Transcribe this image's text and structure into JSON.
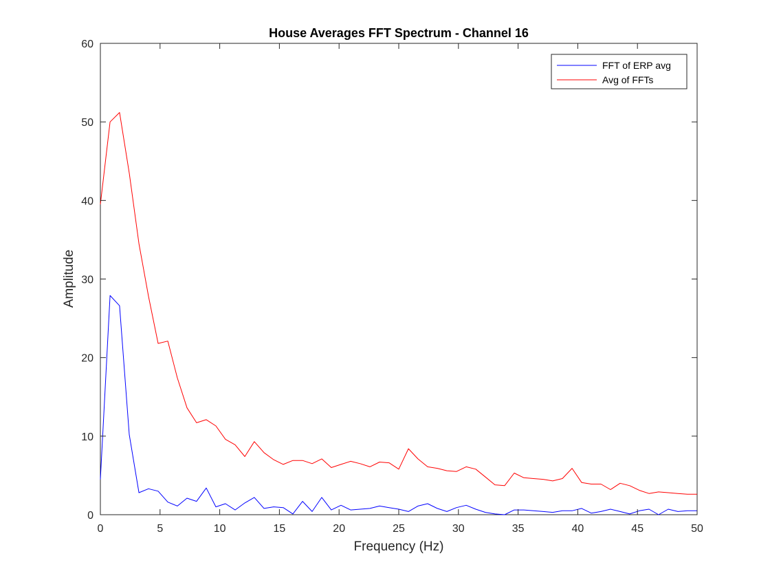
{
  "colors": {
    "background": "#ffffff",
    "axes": "#262626",
    "blue_series": "#0000ff",
    "red_series": "#ff0000"
  },
  "chart_data": {
    "type": "line",
    "title": "House Averages FFT Spectrum - Channel 16",
    "xlabel": "Frequency (Hz)",
    "ylabel": "Amplitude",
    "xlim": [
      0,
      50
    ],
    "ylim": [
      0,
      60
    ],
    "xticks": [
      "0",
      "5",
      "10",
      "15",
      "20",
      "25",
      "30",
      "35",
      "40",
      "45",
      "50"
    ],
    "yticks": [
      "0",
      "10",
      "20",
      "30",
      "40",
      "50",
      "60"
    ],
    "grid": false,
    "legend": "top-right",
    "x": [
      0,
      0.81,
      1.61,
      2.42,
      3.23,
      4.03,
      4.84,
      5.65,
      6.45,
      7.26,
      8.06,
      8.87,
      9.68,
      10.48,
      11.29,
      12.1,
      12.9,
      13.71,
      14.52,
      15.32,
      16.13,
      16.94,
      17.74,
      18.55,
      19.35,
      20.16,
      20.97,
      21.77,
      22.58,
      23.39,
      24.19,
      25.0,
      25.81,
      26.61,
      27.42,
      28.23,
      29.03,
      29.84,
      30.65,
      31.45,
      32.26,
      33.06,
      33.87,
      34.68,
      35.48,
      36.29,
      37.1,
      37.9,
      38.71,
      39.52,
      40.32,
      41.13,
      41.94,
      42.74,
      43.55,
      44.35,
      45.16,
      45.97,
      46.77,
      47.58,
      48.39,
      49.19,
      50.0
    ],
    "series": [
      {
        "name": "FFT of ERP avg",
        "color": "#0000ff",
        "values": [
          4.5,
          27.9,
          26.6,
          10.2,
          2.8,
          3.3,
          3.0,
          1.6,
          1.1,
          2.1,
          1.7,
          3.4,
          1.0,
          1.4,
          0.6,
          1.5,
          2.2,
          0.8,
          1.0,
          0.9,
          0.1,
          1.7,
          0.4,
          2.2,
          0.6,
          1.2,
          0.6,
          0.7,
          0.8,
          1.1,
          0.9,
          0.7,
          0.4,
          1.1,
          1.4,
          0.8,
          0.4,
          0.9,
          1.2,
          0.7,
          0.3,
          0.1,
          0.0,
          0.6,
          0.6,
          0.5,
          0.4,
          0.3,
          0.5,
          0.5,
          0.8,
          0.2,
          0.4,
          0.7,
          0.4,
          0.1,
          0.5,
          0.7,
          0.0,
          0.7,
          0.4,
          0.5,
          0.5
        ]
      },
      {
        "name": "Avg of FFTs",
        "color": "#ff0000",
        "values": [
          39.5,
          50.0,
          51.2,
          43.5,
          34.5,
          27.8,
          21.8,
          22.1,
          17.4,
          13.6,
          11.7,
          12.1,
          11.3,
          9.6,
          8.9,
          7.4,
          9.3,
          7.9,
          7.0,
          6.4,
          6.9,
          6.9,
          6.5,
          7.1,
          6.0,
          6.4,
          6.8,
          6.5,
          6.1,
          6.7,
          6.6,
          5.8,
          8.4,
          7.1,
          6.1,
          5.9,
          5.6,
          5.5,
          6.1,
          5.8,
          4.8,
          3.8,
          3.7,
          5.3,
          4.7,
          4.6,
          4.5,
          4.3,
          4.6,
          5.9,
          4.1,
          3.9,
          3.9,
          3.2,
          4.0,
          3.7,
          3.1,
          2.7,
          2.9,
          2.8,
          2.7,
          2.6,
          2.6
        ]
      }
    ]
  }
}
